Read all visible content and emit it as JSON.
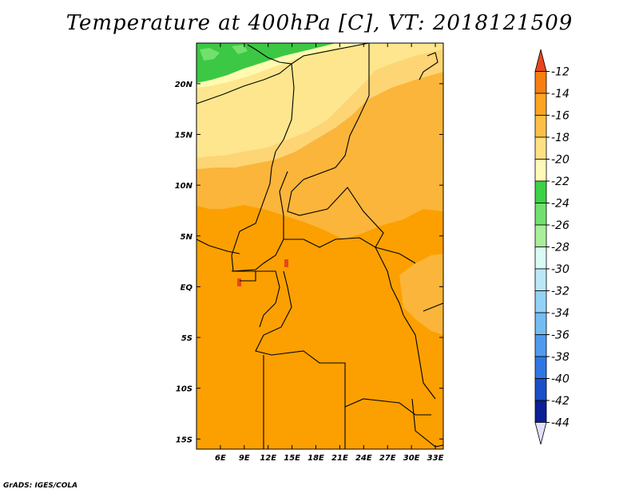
{
  "title": "Temperature at 400hPa [C], VT: 2018121509",
  "credit": "GrADS: IGES/COLA",
  "map": {
    "lon_range": [
      3,
      34
    ],
    "lat_range": [
      -16,
      24
    ],
    "x_ticks": [
      "6E",
      "9E",
      "12E",
      "15E",
      "18E",
      "21E",
      "24E",
      "27E",
      "30E",
      "33E"
    ],
    "y_ticks": [
      "20N",
      "15N",
      "10N",
      "5N",
      "EQ",
      "5S",
      "10S",
      "15S"
    ]
  },
  "colorbar": {
    "labels": [
      "-12",
      "-14",
      "-16",
      "-18",
      "-20",
      "-22",
      "-24",
      "-26",
      "-28",
      "-30",
      "-32",
      "-34",
      "-36",
      "-38",
      "-40",
      "-42",
      "-44"
    ],
    "colors": [
      "#e8461e",
      "#f87e10",
      "#fba521",
      "#fdc047",
      "#fde183",
      "#fffab8",
      "#3dd146",
      "#72e06e",
      "#a9ef9b",
      "#d9fbf5",
      "#b9e8f9",
      "#93d2f6",
      "#73bdf3",
      "#519bef",
      "#3077e4",
      "#1a4fc8",
      "#0b1f96",
      "#e3e0fd"
    ]
  }
}
